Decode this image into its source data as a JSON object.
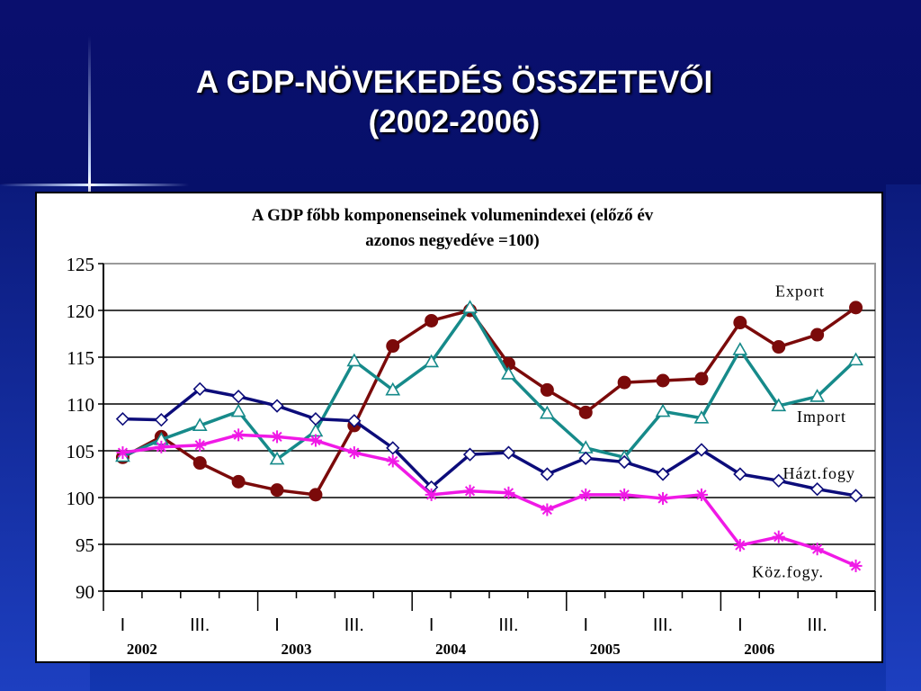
{
  "slide": {
    "title_line1": "A GDP-NÖVEKEDÉS ÖSSZETEVŐI",
    "title_line2": "(2002-2006)"
  },
  "chart_data": {
    "type": "line",
    "title_line1": "A GDP főbb komponenseinek volumenindexei (előző év",
    "title_line2": "azonos negyedéve =100)",
    "ylim": [
      90,
      125
    ],
    "yticks": [
      90,
      95,
      100,
      105,
      110,
      115,
      120,
      125
    ],
    "grid": true,
    "x": [
      "2002 I",
      "2002 II",
      "2002 III",
      "2002 IV",
      "2003 I",
      "2003 II",
      "2003 III",
      "2003 IV",
      "2004 I",
      "2004 II",
      "2004 III",
      "2004 IV",
      "2005 I",
      "2005 II",
      "2005 III",
      "2005 IV",
      "2006 I",
      "2006 II",
      "2006 III",
      "2006 IV"
    ],
    "quarter_labels": [
      {
        "index": 0,
        "text": "I"
      },
      {
        "index": 2,
        "text": "III."
      },
      {
        "index": 4,
        "text": "I"
      },
      {
        "index": 6,
        "text": "III."
      },
      {
        "index": 8,
        "text": "I"
      },
      {
        "index": 10,
        "text": "III."
      },
      {
        "index": 12,
        "text": "I"
      },
      {
        "index": 14,
        "text": "III."
      },
      {
        "index": 16,
        "text": "I"
      },
      {
        "index": 18,
        "text": "III."
      }
    ],
    "year_labels": [
      {
        "start": 0,
        "text": "2002"
      },
      {
        "start": 4,
        "text": "2003"
      },
      {
        "start": 8,
        "text": "2004"
      },
      {
        "start": 12,
        "text": "2005"
      },
      {
        "start": 16,
        "text": "2006"
      }
    ],
    "series": [
      {
        "name": "Export",
        "color": "#7b0a0a",
        "marker": "dot",
        "values": [
          104.3,
          106.5,
          103.7,
          101.7,
          100.8,
          100.3,
          107.7,
          116.2,
          118.9,
          120.0,
          114.3,
          111.5,
          109.1,
          112.3,
          112.5,
          112.7,
          118.7,
          116.1,
          117.4,
          120.3
        ]
      },
      {
        "name": "Import",
        "color": "#168a8a",
        "marker": "triangle",
        "values": [
          104.4,
          106.2,
          107.7,
          109.2,
          104.1,
          107.1,
          114.6,
          111.5,
          114.5,
          120.3,
          113.2,
          109.0,
          105.3,
          104.3,
          109.2,
          108.5,
          115.8,
          109.8,
          110.8,
          114.7
        ]
      },
      {
        "name": "Házt.fogy",
        "color": "#0c0c7a",
        "marker": "diamond",
        "values": [
          108.4,
          108.3,
          111.6,
          110.8,
          109.8,
          108.4,
          108.2,
          105.3,
          101.1,
          104.6,
          104.8,
          102.5,
          104.2,
          103.8,
          102.5,
          105.1,
          102.5,
          101.8,
          100.9,
          100.2
        ]
      },
      {
        "name": "Köz.fogy.",
        "color": "#f019e6",
        "marker": "star",
        "values": [
          104.8,
          105.4,
          105.6,
          106.7,
          106.5,
          106.1,
          104.8,
          103.9,
          100.3,
          100.7,
          100.5,
          98.7,
          100.3,
          100.3,
          99.9,
          100.3,
          94.9,
          95.8,
          94.5,
          92.7
        ]
      }
    ],
    "series_labels": [
      "Export",
      "Import",
      "Házt.fogy",
      "Köz.fogy."
    ]
  }
}
